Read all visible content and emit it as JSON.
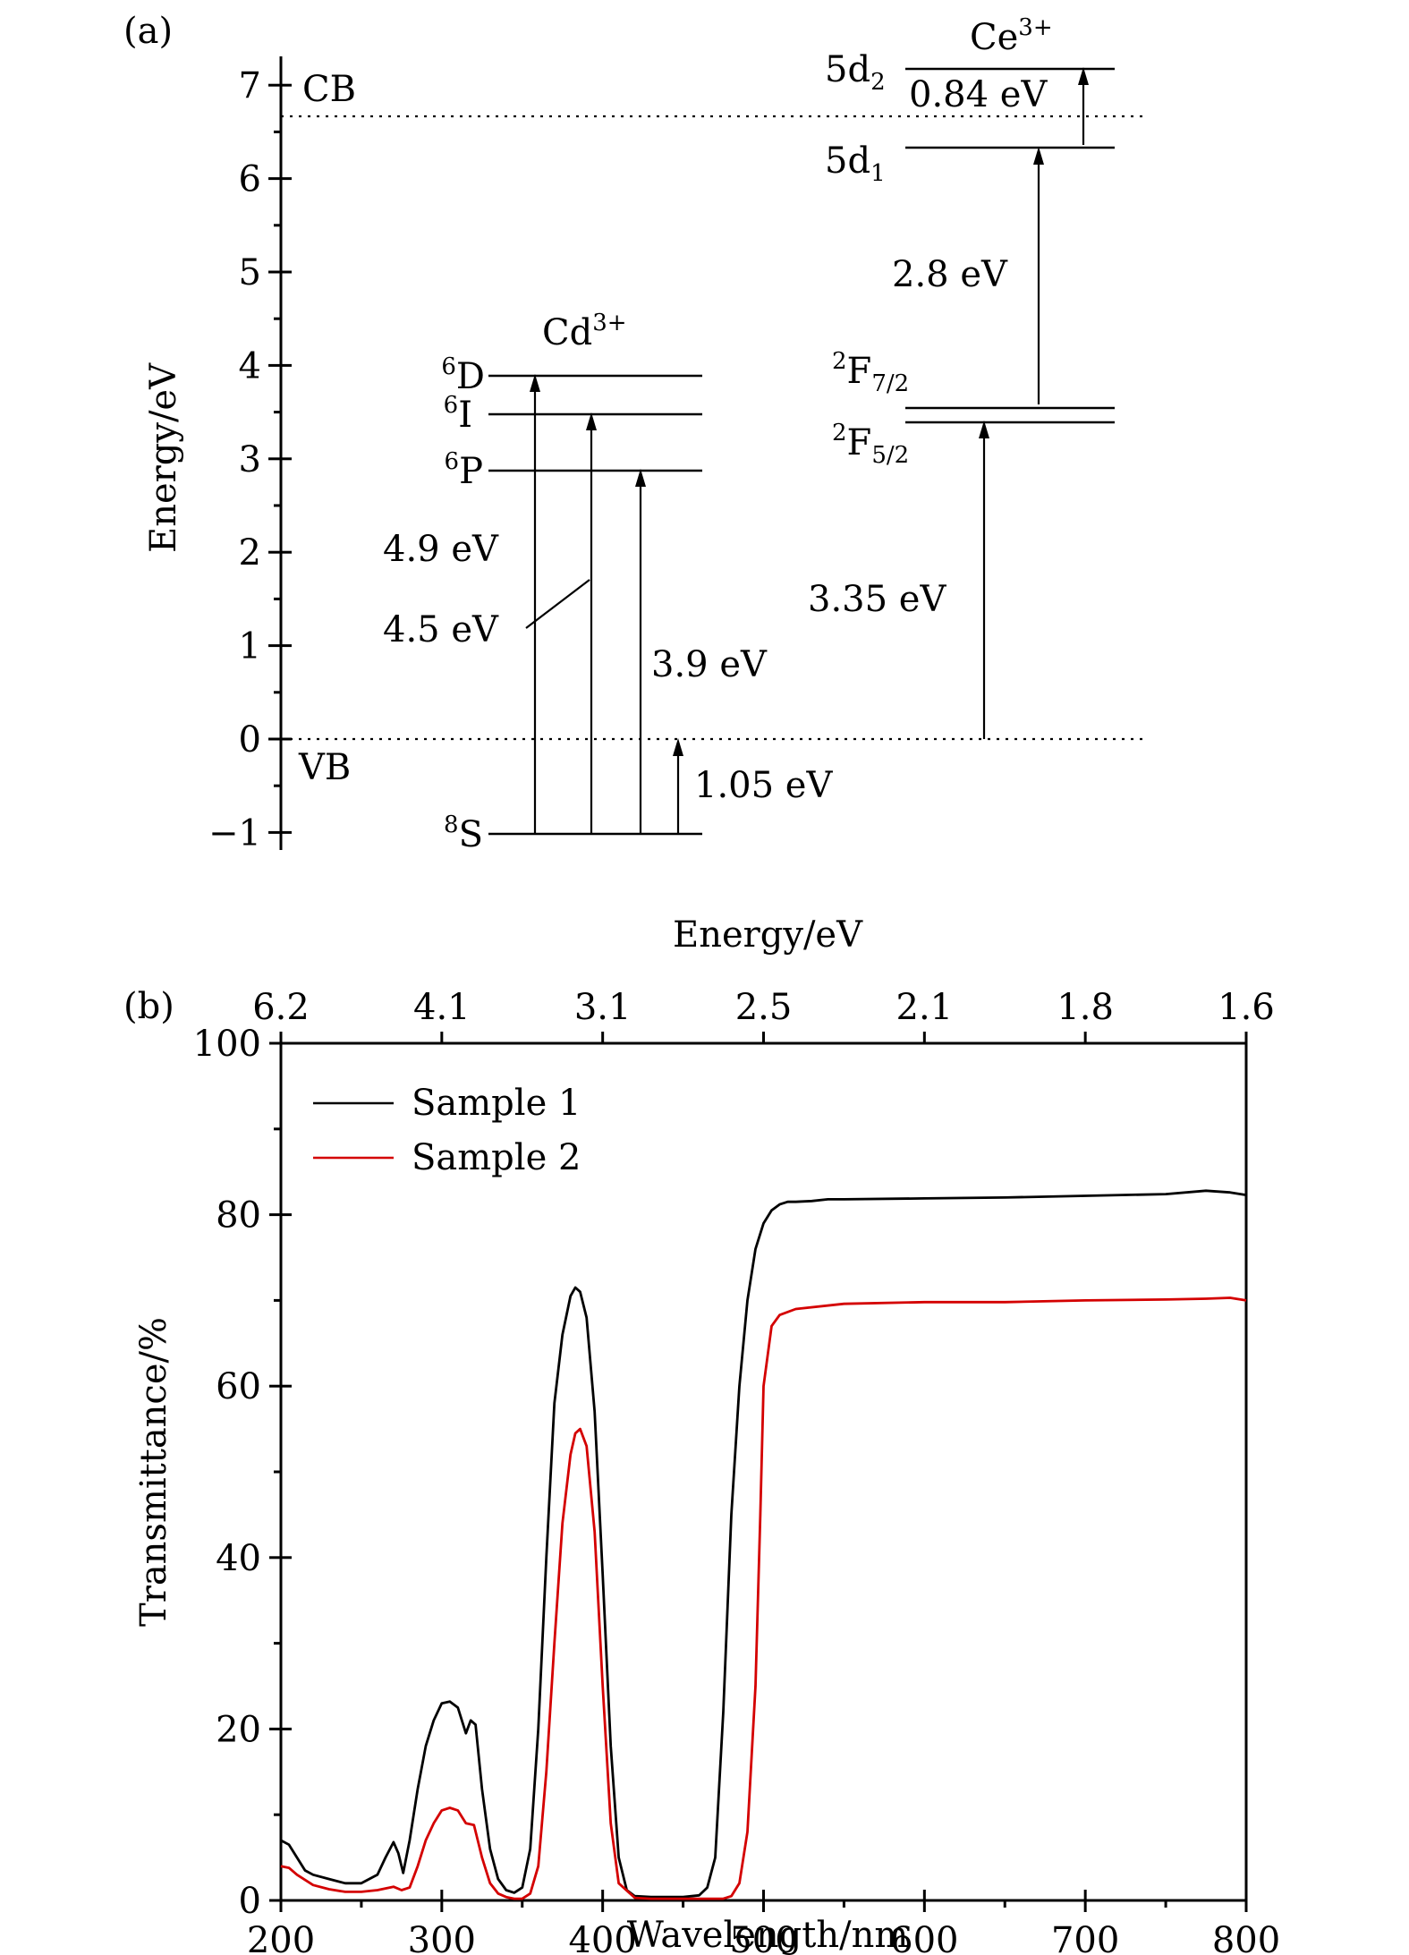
{
  "panel_a": {
    "panel_label": "(a)",
    "ylabel": "Energy/eV",
    "yticks": [
      "−1",
      "0",
      "1",
      "2",
      "3",
      "4",
      "5",
      "6",
      "7"
    ],
    "cb_label": "CB",
    "vb_label": "VB",
    "cd_label": "Cd",
    "cd_sup": "3+",
    "ce_label": "Ce",
    "ce_sup": "3+",
    "levels": {
      "D": {
        "sup": "6",
        "main": "D"
      },
      "I": {
        "sup": "6",
        "main": "I"
      },
      "P": {
        "sup": "6",
        "main": "P"
      },
      "S": {
        "sup": "8",
        "main": "S"
      },
      "F72": {
        "sup": "2",
        "main": "F",
        "sub": "7/2"
      },
      "F52": {
        "sup": "2",
        "main": "F",
        "sub": "5/2"
      },
      "d1": {
        "main": "5d",
        "sub": "1"
      },
      "d2": {
        "main": "5d",
        "sub": "2"
      }
    },
    "transitions": {
      "t49": "4.9 eV",
      "t45": "4.5 eV",
      "t39": "3.9 eV",
      "t105": "1.05 eV",
      "t335": "3.35 eV",
      "t28": "2.8 eV",
      "t084": "0.84 eV"
    }
  },
  "panel_b": {
    "panel_label": "(b)",
    "top_axis_label": "Energy/eV",
    "top_ticks": [
      "6.2",
      "4.1",
      "3.1",
      "2.5",
      "2.1",
      "1.8",
      "1.6"
    ],
    "legend_sample1": "Sample 1",
    "legend_sample2": "Sample 2"
  },
  "chart_data": [
    {
      "type": "diagram",
      "ylabel": "Energy/eV",
      "ylim": [
        -1,
        7
      ],
      "cb_energy": 6.65,
      "vb_energy": 0,
      "ions": [
        {
          "name": "Cd3+",
          "levels": [
            {
              "label": "8S",
              "energy": -1.05
            },
            {
              "label": "6P",
              "energy": 2.85
            },
            {
              "label": "6I",
              "energy": 3.45
            },
            {
              "label": "6D",
              "energy": 3.85
            }
          ]
        },
        {
          "name": "Ce3+",
          "levels": [
            {
              "label": "2F5/2",
              "energy": 3.35
            },
            {
              "label": "2F7/2",
              "energy": 3.5
            },
            {
              "label": "5d1",
              "energy": 6.3
            },
            {
              "label": "5d2",
              "energy": 7.15
            }
          ]
        }
      ],
      "transitions": [
        "4.9 eV",
        "4.5 eV",
        "3.9 eV",
        "1.05 eV",
        "3.35 eV",
        "2.8 eV",
        "0.84 eV"
      ]
    },
    {
      "type": "line",
      "xlabel": "Wavelength/nm",
      "ylabel": "Transmittance/%",
      "xlim": [
        200,
        800
      ],
      "ylim": [
        0,
        100
      ],
      "xticks": [
        200,
        300,
        400,
        500,
        600,
        700,
        800
      ],
      "yticks": [
        0,
        20,
        40,
        60,
        80,
        100
      ],
      "top_axis": {
        "label": "Energy/eV",
        "ticks": [
          "6.2",
          "4.1",
          "3.1",
          "2.5",
          "2.1",
          "1.8",
          "1.6"
        ]
      },
      "legend": "top-left",
      "series": [
        {
          "name": "Sample 1",
          "color": "#000000",
          "x": [
            200,
            205,
            210,
            215,
            220,
            230,
            240,
            250,
            260,
            265,
            270,
            273,
            276,
            280,
            285,
            290,
            295,
            300,
            305,
            310,
            315,
            318,
            321,
            325,
            330,
            335,
            340,
            345,
            350,
            355,
            360,
            365,
            370,
            375,
            380,
            383,
            386,
            390,
            395,
            400,
            405,
            410,
            415,
            420,
            430,
            440,
            450,
            460,
            465,
            470,
            475,
            480,
            485,
            490,
            495,
            500,
            505,
            510,
            515,
            520,
            530,
            540,
            550,
            600,
            650,
            700,
            750,
            775,
            790,
            800
          ],
          "y": [
            7,
            6.5,
            5,
            3.5,
            3,
            2.5,
            2,
            2,
            3,
            5,
            6.8,
            5.5,
            3.2,
            7,
            13,
            18,
            21,
            23,
            23.2,
            22.5,
            19.5,
            21,
            20.5,
            13,
            6,
            2.5,
            1.2,
            0.9,
            1.5,
            6,
            20,
            40,
            58,
            66,
            70.5,
            71.5,
            71,
            68,
            57,
            38,
            18,
            5,
            1.2,
            0.5,
            0.4,
            0.4,
            0.4,
            0.6,
            1.5,
            5,
            22,
            45,
            60,
            70,
            76,
            79,
            80.5,
            81.2,
            81.5,
            81.5,
            81.6,
            81.8,
            81.8,
            81.9,
            82,
            82.2,
            82.4,
            82.8,
            82.6,
            82.3
          ]
        },
        {
          "name": "Sample 2",
          "color": "#d40000",
          "x": [
            200,
            205,
            210,
            220,
            230,
            240,
            250,
            260,
            265,
            270,
            275,
            280,
            285,
            290,
            295,
            300,
            305,
            310,
            315,
            320,
            325,
            330,
            335,
            340,
            345,
            350,
            355,
            360,
            365,
            370,
            375,
            380,
            383,
            386,
            390,
            395,
            400,
            405,
            410,
            420,
            430,
            440,
            450,
            460,
            470,
            475,
            480,
            485,
            490,
            495,
            498,
            500,
            505,
            510,
            520,
            550,
            600,
            650,
            700,
            750,
            775,
            790,
            800
          ],
          "y": [
            4,
            3.8,
            3,
            1.8,
            1.3,
            1,
            1,
            1.2,
            1.4,
            1.6,
            1.2,
            1.5,
            4,
            7,
            9,
            10.5,
            10.8,
            10.5,
            9,
            8.8,
            5,
            2,
            0.8,
            0.4,
            0.2,
            0.2,
            0.8,
            4,
            15,
            30,
            44,
            52,
            54.5,
            55,
            53,
            43,
            25,
            9,
            2,
            0.3,
            0.2,
            0.2,
            0.2,
            0.2,
            0.2,
            0.2,
            0.5,
            2,
            8,
            25,
            45,
            60,
            67,
            68.3,
            69,
            69.6,
            69.8,
            69.8,
            70,
            70.1,
            70.2,
            70.3,
            70
          ]
        }
      ]
    }
  ]
}
